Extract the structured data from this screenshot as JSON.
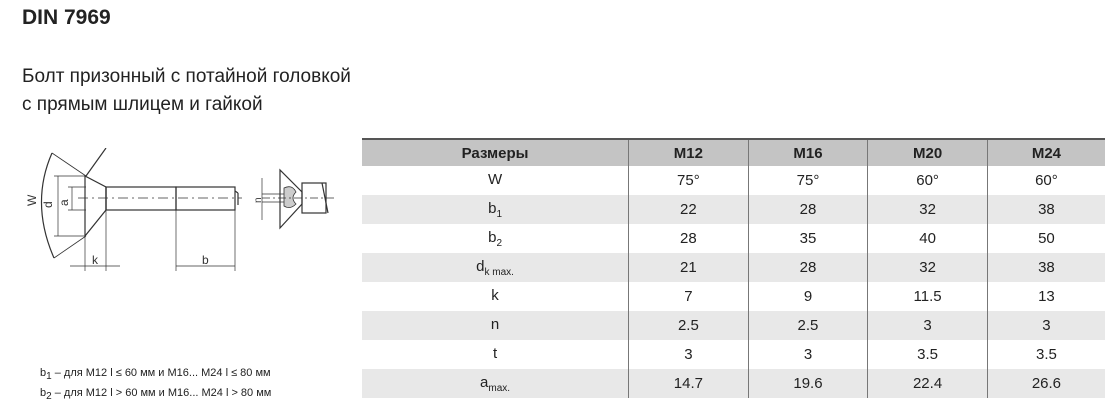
{
  "title": "DIN 7969",
  "subtitle": [
    "Болт призонный с потайной головкой",
    "с прямым шлицем и гайкой"
  ],
  "drawing_labels": {
    "w": "W",
    "dk": "d",
    "dk_sub": "k",
    "a": "a",
    "k": "k",
    "b": "b",
    "n": "n"
  },
  "notes": [
    {
      "sym": "b",
      "sub": "1",
      "text": " – для M12 l ≤ 60 мм и M16... M24 l ≤ 80 мм"
    },
    {
      "sym": "b",
      "sub": "2",
      "text": " – для M12 l > 60 мм и M16... M24 l > 80 мм"
    }
  ],
  "table": {
    "headers": [
      "Размеры",
      "M12",
      "M16",
      "M20",
      "M24"
    ],
    "rows": [
      {
        "sym": "W",
        "sub": "",
        "values": [
          "75°",
          "75°",
          "60°",
          "60°"
        ]
      },
      {
        "sym": "b",
        "sub": "1",
        "values": [
          "22",
          "28",
          "32",
          "38"
        ]
      },
      {
        "sym": "b",
        "sub": "2",
        "values": [
          "28",
          "35",
          "40",
          "50"
        ]
      },
      {
        "sym": "d",
        "sub": "k max.",
        "values": [
          "21",
          "28",
          "32",
          "38"
        ]
      },
      {
        "sym": "k",
        "sub": "",
        "values": [
          "7",
          "9",
          "11.5",
          "13"
        ]
      },
      {
        "sym": "n",
        "sub": "",
        "values": [
          "2.5",
          "2.5",
          "3",
          "3"
        ]
      },
      {
        "sym": "t",
        "sub": "",
        "values": [
          "3",
          "3",
          "3.5",
          "3.5"
        ]
      },
      {
        "sym": "a",
        "sub": "max.",
        "values": [
          "14.7",
          "19.6",
          "22.4",
          "26.6"
        ]
      }
    ]
  }
}
